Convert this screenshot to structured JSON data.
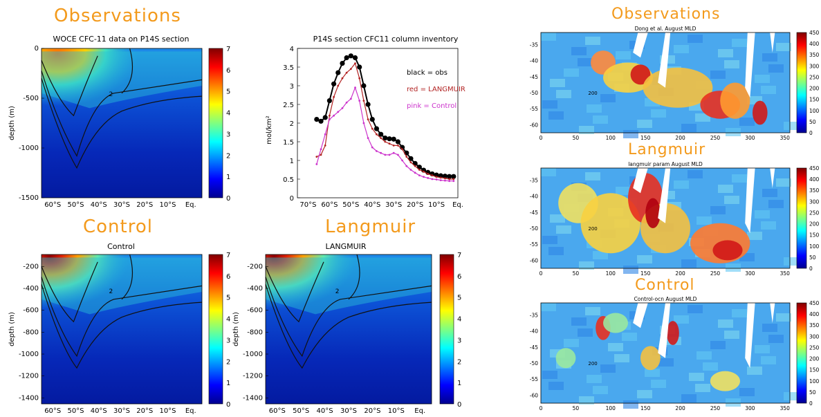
{
  "headings": {
    "obs_left": "Observations",
    "control_left": "Control",
    "langmuir_mid": "Langmuir",
    "obs_right": "Observations",
    "langmuir_right": "Langmuir",
    "control_right": "Control"
  },
  "section_plots": {
    "obs": {
      "title": "WOCE CFC-11 data on P14S section",
      "ylabel": "depth (m)",
      "yticks": [
        "0",
        "-500",
        "-1000",
        "-1500"
      ],
      "xticks": [
        "60°S",
        "50°S",
        "40°S",
        "30°S",
        "20°S",
        "10°S",
        "Eq."
      ],
      "cbar_ticks": [
        "7",
        "6",
        "5",
        "4",
        "3",
        "2",
        "1",
        "0"
      ],
      "contour_label": "2"
    },
    "control": {
      "title": "Control",
      "ylabel": "depth (m)",
      "yticks": [
        "-200",
        "-400",
        "-600",
        "-800",
        "-1000",
        "-1200",
        "-1400"
      ],
      "xticks": [
        "60°S",
        "50°S",
        "40°S",
        "30°S",
        "20°S",
        "10°S",
        "Eq."
      ],
      "cbar_ticks": [
        "7",
        "6",
        "5",
        "4",
        "3",
        "2",
        "1",
        "0"
      ],
      "contour_label": "2"
    },
    "langmuir": {
      "title": "LANGMUIR",
      "ylabel": "depth (m)",
      "yticks": [
        "-200",
        "-400",
        "-600",
        "-800",
        "-1000",
        "-1200",
        "-1400"
      ],
      "xticks": [
        "60°S",
        "50°S",
        "40°S",
        "30°S",
        "20°S",
        "10°S",
        "Eq."
      ],
      "cbar_ticks": [
        "7",
        "6",
        "5",
        "4",
        "3",
        "2",
        "1",
        "0"
      ],
      "contour_label": "2"
    }
  },
  "mld_maps": {
    "obs": {
      "title": "Dong et al. August MLD",
      "yticks": [
        "-35",
        "-40",
        "-45",
        "-50",
        "-55",
        "-60"
      ],
      "xticks": [
        "0",
        "50",
        "100",
        "150",
        "200",
        "250",
        "300",
        "350"
      ],
      "cbar_ticks": [
        "450",
        "400",
        "350",
        "300",
        "250",
        "200",
        "150",
        "100",
        "50",
        "0"
      ],
      "contour_label": "200"
    },
    "langmuir": {
      "title": "langmuir param August MLD",
      "yticks": [
        "-35",
        "-40",
        "-45",
        "-50",
        "-55",
        "-60"
      ],
      "xticks": [
        "0",
        "50",
        "100",
        "150",
        "200",
        "250",
        "300",
        "350"
      ],
      "cbar_ticks": [
        "450",
        "400",
        "350",
        "300",
        "250",
        "200",
        "150",
        "100",
        "50",
        "0"
      ],
      "contour_label": "200"
    },
    "control": {
      "title": "Control-ocn August MLD",
      "yticks": [
        "-35",
        "-40",
        "-45",
        "-50",
        "-55",
        "-60"
      ],
      "xticks": [
        "0",
        "50",
        "100",
        "150",
        "200",
        "250",
        "300",
        "350"
      ],
      "cbar_ticks": [
        "450",
        "400",
        "350",
        "300",
        "250",
        "200",
        "150",
        "100",
        "50",
        "0"
      ],
      "contour_label": "200"
    }
  },
  "chart_data": [
    {
      "type": "line",
      "title": "P14S section CFC11 column inventory",
      "xlabel": "",
      "ylabel": "mol/km²",
      "xticks": [
        "70°S",
        "60°S",
        "50°S",
        "40°S",
        "30°S",
        "20°S",
        "10°S",
        "Eq."
      ],
      "yticks": [
        "0",
        "0.5",
        "1",
        "1.5",
        "2",
        "2.5",
        "3",
        "3.5",
        "4"
      ],
      "ylim": [
        0,
        4
      ],
      "xlim": [
        -75,
        0
      ],
      "legend": [
        "black = obs",
        "red = LANGMUIR",
        "pink = Control"
      ],
      "series": [
        {
          "name": "obs",
          "color": "#000000",
          "x": [
            -66,
            -64,
            -62,
            -60,
            -58,
            -56,
            -54,
            -52,
            -50,
            -48,
            -46,
            -44,
            -42,
            -40,
            -38,
            -36,
            -34,
            -32,
            -30,
            -28,
            -26,
            -24,
            -22,
            -20,
            -18,
            -16,
            -14,
            -12,
            -10,
            -8,
            -6,
            -4,
            -2
          ],
          "y": [
            2.1,
            2.05,
            2.15,
            2.6,
            3.05,
            3.35,
            3.6,
            3.75,
            3.8,
            3.75,
            3.5,
            3.0,
            2.5,
            2.1,
            1.85,
            1.7,
            1.6,
            1.58,
            1.57,
            1.5,
            1.35,
            1.2,
            1.05,
            0.92,
            0.82,
            0.74,
            0.68,
            0.64,
            0.61,
            0.59,
            0.58,
            0.57,
            0.57
          ]
        },
        {
          "name": "LANGMUIR",
          "color": "#b22222",
          "x": [
            -66,
            -64,
            -62,
            -60,
            -58,
            -56,
            -54,
            -52,
            -50,
            -48,
            -46,
            -44,
            -42,
            -40,
            -38,
            -36,
            -34,
            -32,
            -30,
            -28,
            -26,
            -24,
            -22,
            -20,
            -18,
            -16,
            -14,
            -12,
            -10,
            -8,
            -6,
            -4,
            -2
          ],
          "y": [
            1.1,
            1.15,
            1.4,
            2.2,
            2.7,
            3.0,
            3.2,
            3.35,
            3.45,
            3.6,
            3.2,
            2.6,
            2.1,
            1.85,
            1.7,
            1.6,
            1.5,
            1.45,
            1.4,
            1.4,
            1.3,
            1.1,
            0.95,
            0.85,
            0.75,
            0.7,
            0.64,
            0.6,
            0.56,
            0.54,
            0.52,
            0.5,
            0.5
          ]
        },
        {
          "name": "Control",
          "color": "#cc33cc",
          "x": [
            -66,
            -64,
            -62,
            -60,
            -58,
            -56,
            -54,
            -52,
            -50,
            -48,
            -46,
            -44,
            -42,
            -40,
            -38,
            -36,
            -34,
            -32,
            -30,
            -28,
            -26,
            -24,
            -22,
            -20,
            -18,
            -16,
            -14,
            -12,
            -10,
            -8,
            -6,
            -4,
            -2
          ],
          "y": [
            0.9,
            1.3,
            1.7,
            2.1,
            2.2,
            2.3,
            2.4,
            2.55,
            2.65,
            2.95,
            2.6,
            2.0,
            1.6,
            1.35,
            1.25,
            1.2,
            1.15,
            1.15,
            1.2,
            1.15,
            1.0,
            0.85,
            0.75,
            0.67,
            0.6,
            0.56,
            0.53,
            0.5,
            0.49,
            0.47,
            0.46,
            0.45,
            0.45
          ]
        }
      ]
    }
  ]
}
